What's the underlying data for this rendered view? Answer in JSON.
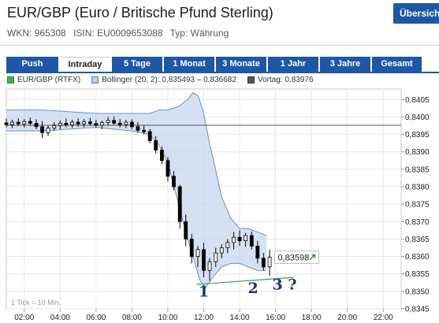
{
  "header": {
    "title": "EUR/GBP (Euro / Britische Pfund Sterling)",
    "overview_button": "Übersich",
    "wkn": "WKN: 965308",
    "isin": "ISIN: EU0009653088",
    "typ": "Typ: Währung"
  },
  "tabs": [
    {
      "label": "Push",
      "active": false
    },
    {
      "label": "Intraday",
      "active": true
    },
    {
      "label": "5 Tage",
      "active": false
    },
    {
      "label": "1 Monat",
      "active": false
    },
    {
      "label": "3 Monate",
      "active": false
    },
    {
      "label": "1 Jahr",
      "active": false
    },
    {
      "label": "3 Jahre",
      "active": false
    },
    {
      "label": "Gesamt",
      "active": false
    }
  ],
  "legend": {
    "series": "EUR/GBP (RTFX)",
    "bollinger": "Bollinger (20, 2): 0,835493 – 0,836682",
    "vortag": "Vortag: 0,83976"
  },
  "colors": {
    "brand": "#1e57a6",
    "candle_up": "#ffffff",
    "candle_down": "#000000",
    "band_fill": "#c7d7ef",
    "band_line": "#6f8fc4",
    "trendline": "#3aa23a",
    "annotation": "#26327a"
  },
  "chart_data": {
    "type": "candlestick",
    "title": "EUR/GBP (RTFX)",
    "ylim": [
      0.8345,
      0.8408
    ],
    "xlim": [
      "01:00",
      "23:00"
    ],
    "x_ticks": [
      "02:00",
      "04:00",
      "06:00",
      "08:00",
      "10:00",
      "12:00",
      "14:00",
      "16:00",
      "18:00",
      "20:00",
      "22:00"
    ],
    "y_ticks": [
      "0,8345",
      "0,8350",
      "0,8355",
      "0,8360",
      "0,8365",
      "0,8370",
      "0,8375",
      "0,8380",
      "0,8385",
      "0,8390",
      "0,8395",
      "0,8400",
      "0,8405"
    ],
    "previous_close": 0.83976,
    "last_value": 0.83598,
    "last_value_label": "0,83598",
    "tick_note": "1 Tick = 10 Min.",
    "bollinger_upper": [
      [
        1.0,
        0.8402
      ],
      [
        3.0,
        0.8402
      ],
      [
        6.0,
        0.8401
      ],
      [
        8.0,
        0.8401
      ],
      [
        9.0,
        0.8401
      ],
      [
        9.5,
        0.8402
      ],
      [
        10.0,
        0.8402
      ],
      [
        10.6,
        0.8403
      ],
      [
        11.1,
        0.8405
      ],
      [
        11.4,
        0.8407
      ],
      [
        11.7,
        0.8406
      ],
      [
        12.0,
        0.8401
      ],
      [
        12.3,
        0.8393
      ],
      [
        12.7,
        0.8384
      ],
      [
        13.0,
        0.8377
      ],
      [
        13.5,
        0.8371
      ],
      [
        14.0,
        0.8368
      ],
      [
        14.5,
        0.8368
      ],
      [
        15.0,
        0.8367
      ],
      [
        15.5,
        0.8366
      ]
    ],
    "bollinger_lower": [
      [
        1.0,
        0.8396
      ],
      [
        3.0,
        0.8396
      ],
      [
        6.0,
        0.8397
      ],
      [
        8.0,
        0.8396
      ],
      [
        9.0,
        0.8395
      ],
      [
        9.5,
        0.8392
      ],
      [
        10.0,
        0.8387
      ],
      [
        10.5,
        0.8377
      ],
      [
        11.0,
        0.8367
      ],
      [
        11.4,
        0.836
      ],
      [
        11.8,
        0.8353
      ],
      [
        12.1,
        0.8351
      ],
      [
        12.5,
        0.8354
      ],
      [
        13.0,
        0.8357
      ],
      [
        13.5,
        0.8358
      ],
      [
        14.0,
        0.8358
      ],
      [
        14.5,
        0.8357
      ],
      [
        15.0,
        0.8356
      ],
      [
        15.5,
        0.8356
      ]
    ],
    "trendline": [
      [
        11.6,
        0.8352
      ],
      [
        17.0,
        0.8354
      ]
    ],
    "candles": [
      {
        "t": 1.0,
        "o": 0.83983,
        "h": 0.83995,
        "l": 0.8397,
        "c": 0.83978
      },
      {
        "t": 1.33,
        "o": 0.83978,
        "h": 0.83992,
        "l": 0.83968,
        "c": 0.83985
      },
      {
        "t": 1.67,
        "o": 0.83985,
        "h": 0.83996,
        "l": 0.83974,
        "c": 0.8398
      },
      {
        "t": 2.0,
        "o": 0.8398,
        "h": 0.83994,
        "l": 0.8397,
        "c": 0.83987
      },
      {
        "t": 2.33,
        "o": 0.83987,
        "h": 0.83998,
        "l": 0.83975,
        "c": 0.83982
      },
      {
        "t": 2.67,
        "o": 0.83982,
        "h": 0.83993,
        "l": 0.83965,
        "c": 0.83972
      },
      {
        "t": 3.0,
        "o": 0.83972,
        "h": 0.83988,
        "l": 0.8394,
        "c": 0.83955
      },
      {
        "t": 3.33,
        "o": 0.83955,
        "h": 0.83975,
        "l": 0.83945,
        "c": 0.83968
      },
      {
        "t": 3.67,
        "o": 0.83968,
        "h": 0.83985,
        "l": 0.8396,
        "c": 0.83975
      },
      {
        "t": 4.0,
        "o": 0.83975,
        "h": 0.8399,
        "l": 0.83965,
        "c": 0.83982
      },
      {
        "t": 4.33,
        "o": 0.83982,
        "h": 0.83995,
        "l": 0.8397,
        "c": 0.83977
      },
      {
        "t": 4.67,
        "o": 0.83977,
        "h": 0.83992,
        "l": 0.83968,
        "c": 0.83985
      },
      {
        "t": 5.0,
        "o": 0.83985,
        "h": 0.83996,
        "l": 0.83972,
        "c": 0.8398
      },
      {
        "t": 5.33,
        "o": 0.8398,
        "h": 0.83994,
        "l": 0.8397,
        "c": 0.83986
      },
      {
        "t": 5.67,
        "o": 0.83986,
        "h": 0.83997,
        "l": 0.83975,
        "c": 0.83981
      },
      {
        "t": 6.0,
        "o": 0.83981,
        "h": 0.83992,
        "l": 0.83969,
        "c": 0.83976
      },
      {
        "t": 6.33,
        "o": 0.83976,
        "h": 0.8399,
        "l": 0.83965,
        "c": 0.83984
      },
      {
        "t": 6.67,
        "o": 0.83984,
        "h": 0.84,
        "l": 0.83975,
        "c": 0.8399
      },
      {
        "t": 7.0,
        "o": 0.8399,
        "h": 0.84002,
        "l": 0.83978,
        "c": 0.83982
      },
      {
        "t": 7.33,
        "o": 0.83982,
        "h": 0.83994,
        "l": 0.8397,
        "c": 0.83978
      },
      {
        "t": 7.67,
        "o": 0.83978,
        "h": 0.83992,
        "l": 0.83968,
        "c": 0.83985
      },
      {
        "t": 8.0,
        "o": 0.83985,
        "h": 0.83993,
        "l": 0.83965,
        "c": 0.83972
      },
      {
        "t": 8.33,
        "o": 0.83972,
        "h": 0.83985,
        "l": 0.83955,
        "c": 0.83962
      },
      {
        "t": 8.67,
        "o": 0.83962,
        "h": 0.83975,
        "l": 0.8395,
        "c": 0.83958
      },
      {
        "t": 9.0,
        "o": 0.83958,
        "h": 0.83965,
        "l": 0.83925,
        "c": 0.83932
      },
      {
        "t": 9.33,
        "o": 0.83932,
        "h": 0.83945,
        "l": 0.83895,
        "c": 0.83905
      },
      {
        "t": 9.67,
        "o": 0.83905,
        "h": 0.83915,
        "l": 0.83865,
        "c": 0.83875
      },
      {
        "t": 10.0,
        "o": 0.83875,
        "h": 0.83885,
        "l": 0.83815,
        "c": 0.8383
      },
      {
        "t": 10.33,
        "o": 0.8383,
        "h": 0.83845,
        "l": 0.8379,
        "c": 0.838
      },
      {
        "t": 10.67,
        "o": 0.838,
        "h": 0.83805,
        "l": 0.8368,
        "c": 0.837
      },
      {
        "t": 11.0,
        "o": 0.837,
        "h": 0.8372,
        "l": 0.8363,
        "c": 0.8365
      },
      {
        "t": 11.33,
        "o": 0.8365,
        "h": 0.83665,
        "l": 0.8358,
        "c": 0.836
      },
      {
        "t": 11.67,
        "o": 0.836,
        "h": 0.8363,
        "l": 0.8357,
        "c": 0.8362
      },
      {
        "t": 12.0,
        "o": 0.8362,
        "h": 0.8364,
        "l": 0.8354,
        "c": 0.8356
      },
      {
        "t": 12.33,
        "o": 0.8356,
        "h": 0.83595,
        "l": 0.8353,
        "c": 0.83585
      },
      {
        "t": 12.67,
        "o": 0.83585,
        "h": 0.83625,
        "l": 0.8357,
        "c": 0.8361
      },
      {
        "t": 13.0,
        "o": 0.8361,
        "h": 0.83635,
        "l": 0.83595,
        "c": 0.83625
      },
      {
        "t": 13.33,
        "o": 0.83625,
        "h": 0.8365,
        "l": 0.8361,
        "c": 0.8364
      },
      {
        "t": 13.67,
        "o": 0.8364,
        "h": 0.8367,
        "l": 0.8362,
        "c": 0.83655
      },
      {
        "t": 14.0,
        "o": 0.83655,
        "h": 0.83675,
        "l": 0.8363,
        "c": 0.83645
      },
      {
        "t": 14.33,
        "o": 0.83645,
        "h": 0.83668,
        "l": 0.83628,
        "c": 0.8366
      },
      {
        "t": 14.67,
        "o": 0.8366,
        "h": 0.83672,
        "l": 0.8362,
        "c": 0.8363
      },
      {
        "t": 15.0,
        "o": 0.8363,
        "h": 0.83645,
        "l": 0.8358,
        "c": 0.83595
      },
      {
        "t": 15.33,
        "o": 0.83595,
        "h": 0.8361,
        "l": 0.8356,
        "c": 0.8357
      },
      {
        "t": 15.67,
        "o": 0.8357,
        "h": 0.8362,
        "l": 0.83545,
        "c": 0.83598
      }
    ],
    "annotations": [
      "1",
      "2",
      "3 ?"
    ]
  }
}
